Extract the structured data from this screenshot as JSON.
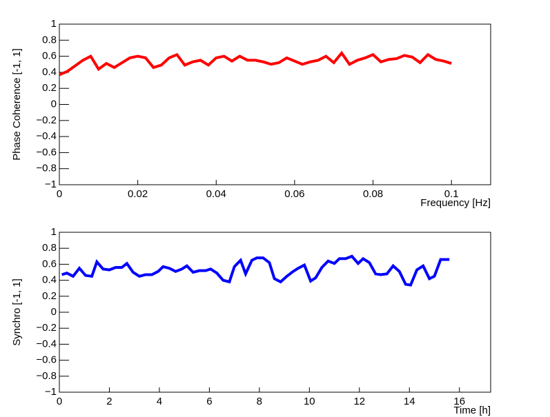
{
  "chart_data": [
    {
      "type": "line",
      "ylabel": "Phase Coherence [-1, 1]",
      "xlabel": "Frequency [Hz]",
      "xlim": [
        0,
        0.11
      ],
      "xticks": [
        0,
        0.02,
        0.04,
        0.06,
        0.08,
        0.1
      ],
      "ylim": [
        -1,
        1
      ],
      "yticks": [
        {
          "value": -1,
          "label": "−1"
        },
        {
          "value": -0.8,
          "label": "−0.8"
        },
        {
          "value": -0.6,
          "label": "−0.6"
        },
        {
          "value": -0.4,
          "label": "−0.4"
        },
        {
          "value": -0.2,
          "label": "−0.2"
        },
        0,
        0.2,
        0.4,
        0.6,
        0.8,
        1
      ],
      "x": [
        0,
        0.002,
        0.004,
        0.006,
        0.008,
        0.01,
        0.012,
        0.014,
        0.016,
        0.018,
        0.02,
        0.022,
        0.024,
        0.026,
        0.028,
        0.03,
        0.032,
        0.034,
        0.036,
        0.038,
        0.04,
        0.042,
        0.044,
        0.046,
        0.048,
        0.05,
        0.052,
        0.054,
        0.056,
        0.058,
        0.06,
        0.062,
        0.064,
        0.066,
        0.068,
        0.07,
        0.072,
        0.074,
        0.076,
        0.078,
        0.08,
        0.082,
        0.084,
        0.086,
        0.088,
        0.09,
        0.092,
        0.094,
        0.096,
        0.098,
        0.1
      ],
      "series": [
        {
          "color": "#ff0000",
          "values": [
            0.37,
            0.41,
            0.48,
            0.55,
            0.6,
            0.44,
            0.51,
            0.46,
            0.52,
            0.58,
            0.6,
            0.58,
            0.46,
            0.49,
            0.58,
            0.62,
            0.49,
            0.53,
            0.55,
            0.49,
            0.58,
            0.6,
            0.54,
            0.6,
            0.55,
            0.55,
            0.53,
            0.5,
            0.52,
            0.58,
            0.54,
            0.5,
            0.53,
            0.55,
            0.6,
            0.52,
            0.64,
            0.5,
            0.55,
            0.58,
            0.62,
            0.53,
            0.56,
            0.57,
            0.61,
            0.59,
            0.52,
            0.62,
            0.56,
            0.54,
            0.51
          ]
        }
      ]
    },
    {
      "type": "line",
      "ylabel": "Synchro [-1, 1]",
      "xlabel": "Time [h]",
      "xlim": [
        0,
        17.25
      ],
      "xticks": [
        0,
        2,
        4,
        6,
        8,
        10,
        12,
        14,
        16
      ],
      "ylim": [
        -1,
        1
      ],
      "yticks": [
        {
          "value": -1,
          "label": "−1"
        },
        {
          "value": -0.8,
          "label": "−0.8"
        },
        {
          "value": -0.6,
          "label": "−0.6"
        },
        {
          "value": -0.4,
          "label": "−0.4"
        },
        {
          "value": -0.2,
          "label": "−0.2"
        },
        0,
        0.2,
        0.4,
        0.6,
        0.8,
        1
      ],
      "x": [
        0.1,
        0.3,
        0.55,
        0.8,
        1.05,
        1.3,
        1.5,
        1.75,
        2.0,
        2.25,
        2.5,
        2.7,
        2.95,
        3.2,
        3.45,
        3.7,
        3.95,
        4.15,
        4.4,
        4.65,
        4.9,
        5.1,
        5.35,
        5.6,
        5.85,
        6.05,
        6.3,
        6.55,
        6.8,
        7.0,
        7.25,
        7.45,
        7.7,
        7.9,
        8.15,
        8.4,
        8.6,
        8.85,
        9.1,
        9.35,
        9.55,
        9.8,
        10.05,
        10.25,
        10.5,
        10.75,
        11.0,
        11.2,
        11.45,
        11.7,
        11.95,
        12.15,
        12.4,
        12.65,
        12.85,
        13.1,
        13.35,
        13.6,
        13.85,
        14.05,
        14.3,
        14.55,
        14.8,
        15.0,
        15.25,
        15.6
      ],
      "series": [
        {
          "color": "#0000ff",
          "values": [
            0.47,
            0.49,
            0.45,
            0.55,
            0.46,
            0.45,
            0.63,
            0.54,
            0.53,
            0.56,
            0.56,
            0.61,
            0.5,
            0.45,
            0.47,
            0.47,
            0.51,
            0.57,
            0.55,
            0.51,
            0.54,
            0.58,
            0.5,
            0.52,
            0.52,
            0.54,
            0.49,
            0.4,
            0.38,
            0.57,
            0.65,
            0.48,
            0.65,
            0.68,
            0.68,
            0.62,
            0.42,
            0.38,
            0.45,
            0.51,
            0.55,
            0.59,
            0.39,
            0.43,
            0.56,
            0.64,
            0.61,
            0.67,
            0.67,
            0.7,
            0.61,
            0.67,
            0.62,
            0.48,
            0.47,
            0.48,
            0.58,
            0.51,
            0.35,
            0.34,
            0.53,
            0.58,
            0.42,
            0.45,
            0.66,
            0.66
          ]
        }
      ]
    }
  ]
}
